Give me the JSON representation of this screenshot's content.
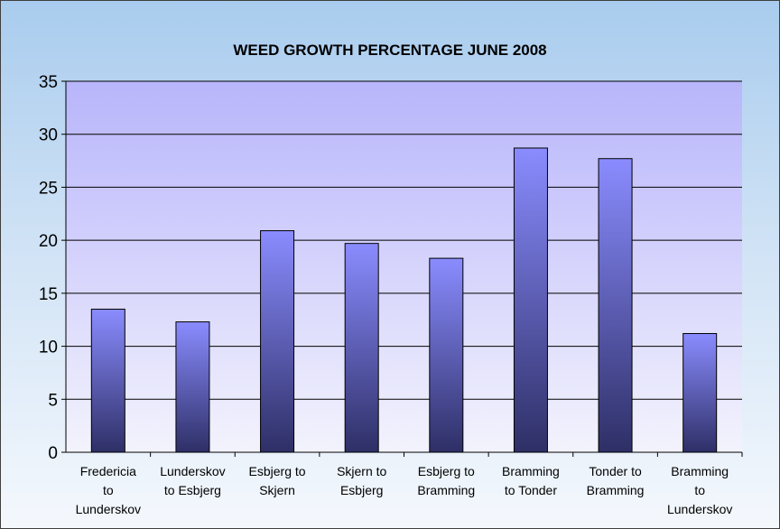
{
  "chart_data": {
    "type": "bar",
    "title": "WEED GROWTH PERCENTAGE JUNE 2008",
    "xlabel": "",
    "ylabel": "",
    "categories": [
      [
        "Fredericia",
        "to",
        "Lunderskov"
      ],
      [
        "Lunderskov",
        "to Esbjerg"
      ],
      [
        "Esbjerg to",
        "Skjern"
      ],
      [
        "Skjern to",
        "Esbjerg"
      ],
      [
        "Esbjerg to",
        "Bramming"
      ],
      [
        "Bramming",
        "to Tonder"
      ],
      [
        "Tonder to",
        "Bramming"
      ],
      [
        "Bramming",
        "to",
        "Lunderskov"
      ]
    ],
    "values": [
      13.5,
      12.3,
      20.9,
      19.7,
      18.3,
      28.7,
      27.7,
      11.2
    ],
    "ylim": [
      0,
      35
    ],
    "yticks": [
      0,
      5,
      10,
      15,
      20,
      25,
      30,
      35
    ],
    "grid": true,
    "legend": "none",
    "colors": {
      "bar_top": "#8a8cff",
      "bar_bottom": "#2e2f66",
      "plot_top": "#b8b5fb",
      "plot_bottom": "#f3f3fd",
      "frame_top": "#a9ccee",
      "frame_bottom": "#f4f8fd"
    }
  }
}
